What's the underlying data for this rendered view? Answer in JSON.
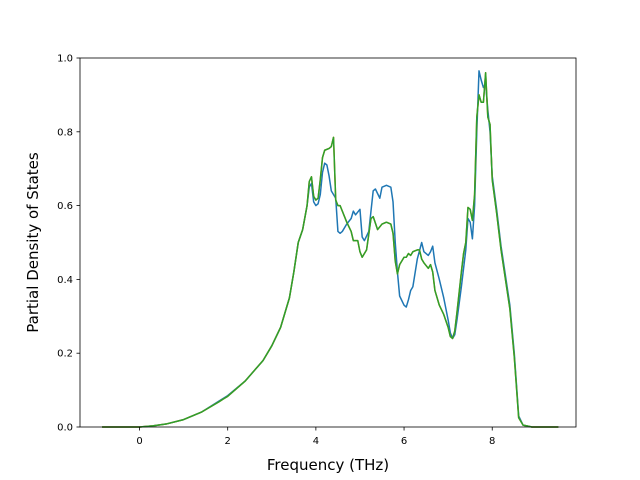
{
  "chart_data": {
    "type": "line",
    "title": "",
    "xlabel": "Frequency (THz)",
    "ylabel": "Partial Density of States",
    "xlim": [
      -1.35,
      9.9
    ],
    "ylim": [
      0.0,
      1.0
    ],
    "x_ticks": [
      0,
      2,
      4,
      6,
      8
    ],
    "x_tick_labels": [
      "0",
      "2",
      "4",
      "6",
      "8"
    ],
    "y_ticks": [
      0.0,
      0.2,
      0.4,
      0.6,
      0.8,
      1.0
    ],
    "y_tick_labels": [
      "0.0",
      "0.2",
      "0.4",
      "0.6",
      "0.8",
      "1.0"
    ],
    "grid": false,
    "legend": "none",
    "series": [
      {
        "color": "#1f77b4",
        "points": [
          [
            -0.85,
            0
          ],
          [
            0,
            0
          ],
          [
            0.3,
            0.003
          ],
          [
            0.6,
            0.008
          ],
          [
            1.0,
            0.02
          ],
          [
            1.4,
            0.04
          ],
          [
            1.8,
            0.07
          ],
          [
            2.0,
            0.085
          ],
          [
            2.4,
            0.125
          ],
          [
            2.8,
            0.18
          ],
          [
            3.0,
            0.22
          ],
          [
            3.2,
            0.27
          ],
          [
            3.4,
            0.35
          ],
          [
            3.5,
            0.42
          ],
          [
            3.6,
            0.5
          ],
          [
            3.7,
            0.535
          ],
          [
            3.8,
            0.6
          ],
          [
            3.85,
            0.65
          ],
          [
            3.9,
            0.66
          ],
          [
            3.95,
            0.61
          ],
          [
            4.0,
            0.6
          ],
          [
            4.05,
            0.605
          ],
          [
            4.1,
            0.63
          ],
          [
            4.15,
            0.69
          ],
          [
            4.2,
            0.715
          ],
          [
            4.25,
            0.71
          ],
          [
            4.3,
            0.68
          ],
          [
            4.35,
            0.64
          ],
          [
            4.45,
            0.62
          ],
          [
            4.5,
            0.53
          ],
          [
            4.55,
            0.525
          ],
          [
            4.6,
            0.53
          ],
          [
            4.7,
            0.55
          ],
          [
            4.8,
            0.565
          ],
          [
            4.85,
            0.585
          ],
          [
            4.9,
            0.575
          ],
          [
            5.0,
            0.59
          ],
          [
            5.05,
            0.515
          ],
          [
            5.1,
            0.505
          ],
          [
            5.2,
            0.53
          ],
          [
            5.3,
            0.64
          ],
          [
            5.35,
            0.645
          ],
          [
            5.45,
            0.62
          ],
          [
            5.5,
            0.65
          ],
          [
            5.6,
            0.655
          ],
          [
            5.7,
            0.65
          ],
          [
            5.75,
            0.61
          ],
          [
            5.8,
            0.5
          ],
          [
            5.85,
            0.42
          ],
          [
            5.9,
            0.355
          ],
          [
            6.0,
            0.33
          ],
          [
            6.05,
            0.325
          ],
          [
            6.1,
            0.345
          ],
          [
            6.15,
            0.37
          ],
          [
            6.2,
            0.38
          ],
          [
            6.3,
            0.455
          ],
          [
            6.4,
            0.5
          ],
          [
            6.45,
            0.475
          ],
          [
            6.55,
            0.465
          ],
          [
            6.6,
            0.475
          ],
          [
            6.65,
            0.49
          ],
          [
            6.7,
            0.445
          ],
          [
            6.8,
            0.4
          ],
          [
            6.9,
            0.35
          ],
          [
            7.0,
            0.29
          ],
          [
            7.05,
            0.255
          ],
          [
            7.1,
            0.24
          ],
          [
            7.15,
            0.25
          ],
          [
            7.2,
            0.29
          ],
          [
            7.3,
            0.38
          ],
          [
            7.4,
            0.48
          ],
          [
            7.45,
            0.565
          ],
          [
            7.5,
            0.555
          ],
          [
            7.55,
            0.51
          ],
          [
            7.6,
            0.6
          ],
          [
            7.65,
            0.8
          ],
          [
            7.7,
            0.965
          ],
          [
            7.75,
            0.94
          ],
          [
            7.8,
            0.92
          ],
          [
            7.85,
            0.93
          ],
          [
            7.9,
            0.86
          ],
          [
            7.95,
            0.8
          ],
          [
            8.0,
            0.68
          ],
          [
            8.1,
            0.59
          ],
          [
            8.2,
            0.49
          ],
          [
            8.4,
            0.33
          ],
          [
            8.5,
            0.2
          ],
          [
            8.6,
            0.03
          ],
          [
            8.7,
            0.005
          ],
          [
            8.9,
            0
          ],
          [
            9.5,
            0
          ]
        ]
      },
      {
        "color": "#ff7f0e",
        "points": [
          [
            -0.85,
            0
          ],
          [
            0,
            0
          ],
          [
            0.3,
            0.003
          ],
          [
            0.6,
            0.008
          ],
          [
            1.0,
            0.02
          ],
          [
            1.4,
            0.04
          ],
          [
            1.8,
            0.068
          ],
          [
            1.9,
            0.076
          ],
          [
            2.0,
            0.083
          ],
          [
            2.4,
            0.125
          ],
          [
            2.8,
            0.18
          ],
          [
            3.0,
            0.22
          ],
          [
            3.2,
            0.27
          ],
          [
            3.4,
            0.35
          ],
          [
            3.5,
            0.42
          ],
          [
            3.6,
            0.5
          ],
          [
            3.7,
            0.535
          ],
          [
            3.8,
            0.6
          ],
          [
            3.85,
            0.665
          ],
          [
            3.9,
            0.678
          ],
          [
            3.95,
            0.625
          ],
          [
            4.0,
            0.615
          ],
          [
            4.05,
            0.62
          ],
          [
            4.1,
            0.67
          ],
          [
            4.15,
            0.73
          ],
          [
            4.2,
            0.75
          ],
          [
            4.3,
            0.755
          ],
          [
            4.35,
            0.76
          ],
          [
            4.4,
            0.785
          ],
          [
            4.45,
            0.615
          ],
          [
            4.5,
            0.6
          ],
          [
            4.55,
            0.6
          ],
          [
            4.7,
            0.555
          ],
          [
            4.8,
            0.53
          ],
          [
            4.85,
            0.505
          ],
          [
            4.95,
            0.505
          ],
          [
            5.0,
            0.475
          ],
          [
            5.05,
            0.46
          ],
          [
            5.15,
            0.48
          ],
          [
            5.25,
            0.565
          ],
          [
            5.3,
            0.57
          ],
          [
            5.4,
            0.535
          ],
          [
            5.5,
            0.55
          ],
          [
            5.6,
            0.555
          ],
          [
            5.7,
            0.55
          ],
          [
            5.75,
            0.525
          ],
          [
            5.8,
            0.45
          ],
          [
            5.85,
            0.415
          ],
          [
            5.9,
            0.44
          ],
          [
            6.0,
            0.46
          ],
          [
            6.05,
            0.46
          ],
          [
            6.1,
            0.47
          ],
          [
            6.15,
            0.465
          ],
          [
            6.2,
            0.475
          ],
          [
            6.3,
            0.48
          ],
          [
            6.35,
            0.48
          ],
          [
            6.4,
            0.455
          ],
          [
            6.45,
            0.445
          ],
          [
            6.55,
            0.43
          ],
          [
            6.6,
            0.44
          ],
          [
            6.65,
            0.42
          ],
          [
            6.7,
            0.37
          ],
          [
            6.8,
            0.33
          ],
          [
            6.9,
            0.305
          ],
          [
            7.0,
            0.27
          ],
          [
            7.05,
            0.245
          ],
          [
            7.1,
            0.24
          ],
          [
            7.15,
            0.26
          ],
          [
            7.2,
            0.31
          ],
          [
            7.3,
            0.42
          ],
          [
            7.35,
            0.47
          ],
          [
            7.4,
            0.5
          ],
          [
            7.45,
            0.595
          ],
          [
            7.5,
            0.59
          ],
          [
            7.55,
            0.56
          ],
          [
            7.6,
            0.63
          ],
          [
            7.65,
            0.84
          ],
          [
            7.7,
            0.9
          ],
          [
            7.75,
            0.88
          ],
          [
            7.8,
            0.88
          ],
          [
            7.85,
            0.96
          ],
          [
            7.9,
            0.84
          ],
          [
            7.95,
            0.82
          ],
          [
            8.0,
            0.67
          ],
          [
            8.1,
            0.58
          ],
          [
            8.2,
            0.48
          ],
          [
            8.4,
            0.32
          ],
          [
            8.5,
            0.19
          ],
          [
            8.6,
            0.025
          ],
          [
            8.7,
            0.005
          ],
          [
            8.9,
            0
          ],
          [
            9.5,
            0
          ]
        ]
      },
      {
        "color": "#2ca02c",
        "points": [
          [
            -0.85,
            0
          ],
          [
            0,
            0
          ],
          [
            0.3,
            0.003
          ],
          [
            0.6,
            0.008
          ],
          [
            1.0,
            0.02
          ],
          [
            1.4,
            0.04
          ],
          [
            1.8,
            0.068
          ],
          [
            1.9,
            0.076
          ],
          [
            2.0,
            0.083
          ],
          [
            2.4,
            0.125
          ],
          [
            2.8,
            0.18
          ],
          [
            3.0,
            0.22
          ],
          [
            3.2,
            0.27
          ],
          [
            3.4,
            0.35
          ],
          [
            3.5,
            0.42
          ],
          [
            3.6,
            0.5
          ],
          [
            3.7,
            0.535
          ],
          [
            3.8,
            0.6
          ],
          [
            3.85,
            0.665
          ],
          [
            3.9,
            0.678
          ],
          [
            3.95,
            0.625
          ],
          [
            4.0,
            0.615
          ],
          [
            4.05,
            0.62
          ],
          [
            4.1,
            0.67
          ],
          [
            4.15,
            0.73
          ],
          [
            4.2,
            0.75
          ],
          [
            4.3,
            0.755
          ],
          [
            4.35,
            0.76
          ],
          [
            4.4,
            0.785
          ],
          [
            4.45,
            0.615
          ],
          [
            4.5,
            0.6
          ],
          [
            4.55,
            0.6
          ],
          [
            4.7,
            0.555
          ],
          [
            4.8,
            0.53
          ],
          [
            4.85,
            0.505
          ],
          [
            4.95,
            0.505
          ],
          [
            5.0,
            0.475
          ],
          [
            5.05,
            0.46
          ],
          [
            5.15,
            0.48
          ],
          [
            5.25,
            0.565
          ],
          [
            5.3,
            0.57
          ],
          [
            5.4,
            0.535
          ],
          [
            5.5,
            0.55
          ],
          [
            5.6,
            0.555
          ],
          [
            5.7,
            0.55
          ],
          [
            5.75,
            0.525
          ],
          [
            5.8,
            0.45
          ],
          [
            5.85,
            0.415
          ],
          [
            5.9,
            0.44
          ],
          [
            6.0,
            0.46
          ],
          [
            6.05,
            0.46
          ],
          [
            6.1,
            0.47
          ],
          [
            6.15,
            0.465
          ],
          [
            6.2,
            0.475
          ],
          [
            6.3,
            0.48
          ],
          [
            6.35,
            0.48
          ],
          [
            6.4,
            0.455
          ],
          [
            6.45,
            0.445
          ],
          [
            6.55,
            0.43
          ],
          [
            6.6,
            0.44
          ],
          [
            6.65,
            0.42
          ],
          [
            6.7,
            0.37
          ],
          [
            6.8,
            0.33
          ],
          [
            6.9,
            0.305
          ],
          [
            7.0,
            0.27
          ],
          [
            7.05,
            0.245
          ],
          [
            7.1,
            0.24
          ],
          [
            7.15,
            0.26
          ],
          [
            7.2,
            0.31
          ],
          [
            7.3,
            0.42
          ],
          [
            7.35,
            0.47
          ],
          [
            7.4,
            0.5
          ],
          [
            7.45,
            0.595
          ],
          [
            7.5,
            0.59
          ],
          [
            7.55,
            0.56
          ],
          [
            7.6,
            0.63
          ],
          [
            7.65,
            0.84
          ],
          [
            7.7,
            0.9
          ],
          [
            7.75,
            0.88
          ],
          [
            7.8,
            0.88
          ],
          [
            7.85,
            0.96
          ],
          [
            7.9,
            0.84
          ],
          [
            7.95,
            0.82
          ],
          [
            8.0,
            0.67
          ],
          [
            8.1,
            0.58
          ],
          [
            8.2,
            0.48
          ],
          [
            8.4,
            0.32
          ],
          [
            8.5,
            0.19
          ],
          [
            8.6,
            0.025
          ],
          [
            8.7,
            0.005
          ],
          [
            8.9,
            0
          ],
          [
            9.5,
            0
          ]
        ]
      }
    ]
  }
}
